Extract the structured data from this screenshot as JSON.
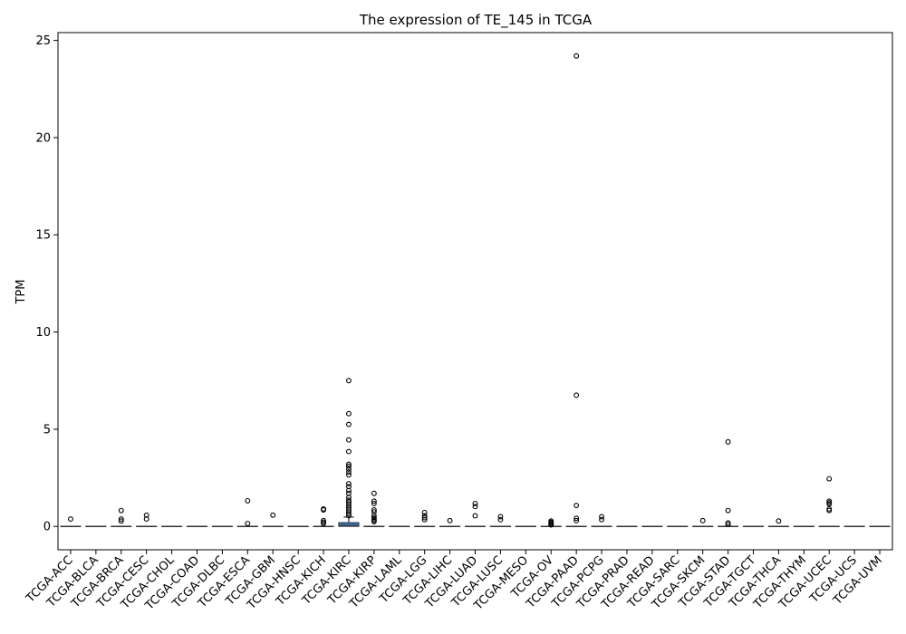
{
  "chart_data": {
    "type": "box",
    "title": "The expression of TE_145 in TCGA",
    "xlabel": "",
    "ylabel": "TPM",
    "ylim": [
      -1.2,
      25.4
    ],
    "yticks": [
      0,
      5,
      10,
      15,
      20,
      25
    ],
    "grid": false,
    "legend": "none",
    "box_color": "#3a6a9b",
    "categories": [
      "TCGA-ACC",
      "TCGA-BLCA",
      "TCGA-BRCA",
      "TCGA-CESC",
      "TCGA-CHOL",
      "TCGA-COAD",
      "TCGA-DLBC",
      "TCGA-ESCA",
      "TCGA-GBM",
      "TCGA-HNSC",
      "TCGA-KICH",
      "TCGA-KIRC",
      "TCGA-KIRP",
      "TCGA-LAML",
      "TCGA-LGG",
      "TCGA-LIHC",
      "TCGA-LUAD",
      "TCGA-LUSC",
      "TCGA-MESO",
      "TCGA-OV",
      "TCGA-PAAD",
      "TCGA-PCPG",
      "TCGA-PRAD",
      "TCGA-READ",
      "TCGA-SARC",
      "TCGA-SKCM",
      "TCGA-STAD",
      "TCGA-TGCT",
      "TCGA-THCA",
      "TCGA-THYM",
      "TCGA-UCEC",
      "TCGA-UCS",
      "TCGA-UVM"
    ],
    "boxes": [
      {
        "q1": 0,
        "median": 0,
        "q3": 0,
        "whisker_low": 0,
        "whisker_high": 0,
        "outliers": [
          0.38
        ]
      },
      {
        "q1": 0,
        "median": 0,
        "q3": 0,
        "whisker_low": 0,
        "whisker_high": 0,
        "outliers": []
      },
      {
        "q1": 0,
        "median": 0,
        "q3": 0,
        "whisker_low": 0,
        "whisker_high": 0,
        "outliers": [
          0.28,
          0.38,
          0.82
        ]
      },
      {
        "q1": 0,
        "median": 0,
        "q3": 0,
        "whisker_low": 0,
        "whisker_high": 0,
        "outliers": [
          0.38,
          0.58
        ]
      },
      {
        "q1": 0,
        "median": 0,
        "q3": 0,
        "whisker_low": 0,
        "whisker_high": 0,
        "outliers": []
      },
      {
        "q1": 0,
        "median": 0,
        "q3": 0,
        "whisker_low": 0,
        "whisker_high": 0,
        "outliers": []
      },
      {
        "q1": 0,
        "median": 0,
        "q3": 0,
        "whisker_low": 0,
        "whisker_high": 0,
        "outliers": []
      },
      {
        "q1": 0,
        "median": 0,
        "q3": 0,
        "whisker_low": 0,
        "whisker_high": 0,
        "outliers": [
          0.15,
          1.32
        ]
      },
      {
        "q1": 0,
        "median": 0,
        "q3": 0,
        "whisker_low": 0,
        "whisker_high": 0,
        "outliers": [
          0.58
        ]
      },
      {
        "q1": 0,
        "median": 0,
        "q3": 0,
        "whisker_low": 0,
        "whisker_high": 0,
        "outliers": []
      },
      {
        "q1": 0,
        "median": 0,
        "q3": 0,
        "whisker_low": 0,
        "whisker_high": 0,
        "outliers": [
          0.15,
          0.22,
          0.3,
          0.85,
          0.9
        ]
      },
      {
        "q1": 0,
        "median": 0.02,
        "q3": 0.2,
        "whisker_low": 0,
        "whisker_high": 0.48,
        "outliers": [
          0.55,
          0.65,
          0.75,
          0.85,
          0.95,
          1.05,
          1.15,
          1.25,
          1.35,
          1.5,
          1.7,
          1.85,
          2.05,
          2.2,
          2.65,
          2.8,
          2.95,
          3.1,
          3.2,
          3.85,
          4.45,
          5.25,
          5.8,
          7.5
        ]
      },
      {
        "q1": 0,
        "median": 0,
        "q3": 0,
        "whisker_low": 0,
        "whisker_high": 0,
        "outliers": [
          0.25,
          0.3,
          0.38,
          0.45,
          0.55,
          0.75,
          0.85,
          1.18,
          1.3,
          1.7
        ]
      },
      {
        "q1": 0,
        "median": 0,
        "q3": 0,
        "whisker_low": 0,
        "whisker_high": 0,
        "outliers": []
      },
      {
        "q1": 0,
        "median": 0,
        "q3": 0,
        "whisker_low": 0,
        "whisker_high": 0,
        "outliers": [
          0.35,
          0.45,
          0.55,
          0.72
        ]
      },
      {
        "q1": 0,
        "median": 0,
        "q3": 0,
        "whisker_low": 0,
        "whisker_high": 0,
        "outliers": [
          0.3
        ]
      },
      {
        "q1": 0,
        "median": 0,
        "q3": 0,
        "whisker_low": 0,
        "whisker_high": 0,
        "outliers": [
          0.55,
          1.02,
          1.18
        ]
      },
      {
        "q1": 0,
        "median": 0,
        "q3": 0,
        "whisker_low": 0,
        "whisker_high": 0,
        "outliers": [
          0.35,
          0.5
        ]
      },
      {
        "q1": 0,
        "median": 0,
        "q3": 0,
        "whisker_low": 0,
        "whisker_high": 0,
        "outliers": []
      },
      {
        "q1": 0,
        "median": 0,
        "q3": 0,
        "whisker_low": 0,
        "whisker_high": 0,
        "outliers": [
          0.08,
          0.12,
          0.18,
          0.22,
          0.28
        ]
      },
      {
        "q1": 0,
        "median": 0,
        "q3": 0,
        "whisker_low": 0,
        "whisker_high": 0,
        "outliers": [
          0.3,
          0.42,
          1.08,
          6.75,
          24.2
        ]
      },
      {
        "q1": 0,
        "median": 0,
        "q3": 0,
        "whisker_low": 0,
        "whisker_high": 0,
        "outliers": [
          0.35,
          0.5
        ]
      },
      {
        "q1": 0,
        "median": 0,
        "q3": 0,
        "whisker_low": 0,
        "whisker_high": 0,
        "outliers": []
      },
      {
        "q1": 0,
        "median": 0,
        "q3": 0,
        "whisker_low": 0,
        "whisker_high": 0,
        "outliers": []
      },
      {
        "q1": 0,
        "median": 0,
        "q3": 0,
        "whisker_low": 0,
        "whisker_high": 0,
        "outliers": []
      },
      {
        "q1": 0,
        "median": 0,
        "q3": 0,
        "whisker_low": 0,
        "whisker_high": 0,
        "outliers": [
          0.3
        ]
      },
      {
        "q1": 0,
        "median": 0,
        "q3": 0,
        "whisker_low": 0,
        "whisker_high": 0,
        "outliers": [
          0.1,
          0.18,
          0.82,
          4.35
        ]
      },
      {
        "q1": 0,
        "median": 0,
        "q3": 0,
        "whisker_low": 0,
        "whisker_high": 0,
        "outliers": []
      },
      {
        "q1": 0,
        "median": 0,
        "q3": 0,
        "whisker_low": 0,
        "whisker_high": 0,
        "outliers": [
          0.28
        ]
      },
      {
        "q1": 0,
        "median": 0,
        "q3": 0,
        "whisker_low": 0,
        "whisker_high": 0,
        "outliers": []
      },
      {
        "q1": 0,
        "median": 0,
        "q3": 0,
        "whisker_low": 0,
        "whisker_high": 0,
        "outliers": [
          0.82,
          0.9,
          1.15,
          1.22,
          1.3,
          2.45
        ]
      },
      {
        "q1": 0,
        "median": 0,
        "q3": 0,
        "whisker_low": 0,
        "whisker_high": 0,
        "outliers": []
      },
      {
        "q1": 0,
        "median": 0,
        "q3": 0,
        "whisker_low": 0,
        "whisker_high": 0,
        "outliers": []
      }
    ]
  }
}
